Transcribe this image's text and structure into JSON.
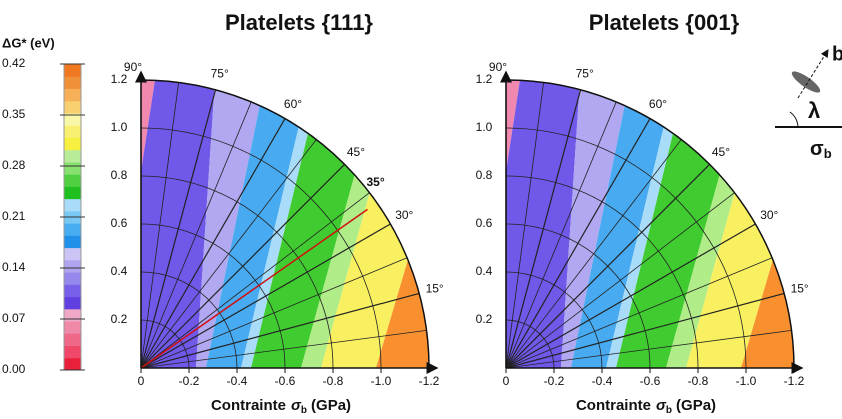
{
  "colorbar": {
    "title": "ΔG* (eV)",
    "lim": [
      0,
      0.42
    ],
    "ticks": [
      {
        "value": 0,
        "label": "0.00"
      },
      0.07,
      0.14,
      0.21,
      0.28,
      0.35,
      0.42
    ],
    "colors": [
      "#e8203c",
      "#f04868",
      "#f06888",
      "#f088a8",
      "#f0a8c8",
      "#6040e0",
      "#7860e8",
      "#9488ec",
      "#b0a4f0",
      "#ccc4f4",
      "#2090e8",
      "#48acf0",
      "#78c8f4",
      "#a8dcf8",
      "#20c020",
      "#50d040",
      "#88e070",
      "#b8ec98",
      "#f8f040",
      "#f8f070",
      "#f8f8a8",
      "#f8d070",
      "#f8b058",
      "#f09038",
      "#f07820"
    ]
  },
  "chart_data": [
    {
      "type": "polar",
      "title": "Platelets {111}",
      "xlim": [
        0,
        -1.2
      ],
      "ylim": [
        0,
        1.2
      ],
      "xticks": [
        0,
        -0.2,
        -0.4,
        -0.6,
        -0.8,
        {
          "value": -1,
          "label": "-1.0"
        },
        -1.2
      ],
      "yticks": [
        0.2,
        0.4,
        0.6,
        0.8,
        {
          "value": 1,
          "label": "1.0"
        },
        1.2
      ],
      "angle_ticks": [
        {
          "value": 15,
          "label": "15°"
        },
        {
          "value": 30,
          "label": "30°"
        },
        {
          "value": 45,
          "label": "45°"
        },
        {
          "value": 60,
          "label": "60°"
        },
        {
          "value": 75,
          "label": "75°"
        },
        {
          "value": 90,
          "label": "90°"
        }
      ],
      "angle_grid": [
        7.5,
        22.5,
        37.5,
        52.5,
        67.5,
        82.5
      ],
      "highlight": {
        "value": 35,
        "label": "35°",
        "color": "#d01010"
      },
      "x_label": {
        "text": "Contrainte",
        "symbol": "σ",
        "sub": "b",
        "unit": "(GPa)"
      }
    },
    {
      "type": "polar",
      "title": "Platelets {001}",
      "xlim": [
        0,
        -1.2
      ],
      "ylim": [
        0,
        1.2
      ],
      "xticks": [
        0,
        -0.2,
        -0.4,
        -0.6,
        -0.8,
        {
          "value": -1,
          "label": "-1.0"
        },
        -1.2
      ],
      "yticks": [
        0.2,
        0.4,
        0.6,
        0.8,
        {
          "value": 1,
          "label": "1.0"
        },
        1.2
      ],
      "angle_ticks": [
        {
          "value": 15,
          "label": "15°"
        },
        {
          "value": 30,
          "label": "30°"
        },
        {
          "value": 45,
          "label": "45°"
        },
        {
          "value": 60,
          "label": "60°"
        },
        {
          "value": 75,
          "label": "75°"
        },
        {
          "value": 90,
          "label": "90°"
        }
      ],
      "angle_grid": [
        7.5,
        22.5,
        37.5,
        52.5,
        67.5,
        82.5
      ],
      "x_label": {
        "text": "Contrainte",
        "symbol": "σ",
        "sub": "b",
        "unit": "(GPa)"
      }
    }
  ],
  "inset": {
    "vector": "b",
    "angle": "λ",
    "stress": "σ",
    "stress_sub": "b"
  }
}
